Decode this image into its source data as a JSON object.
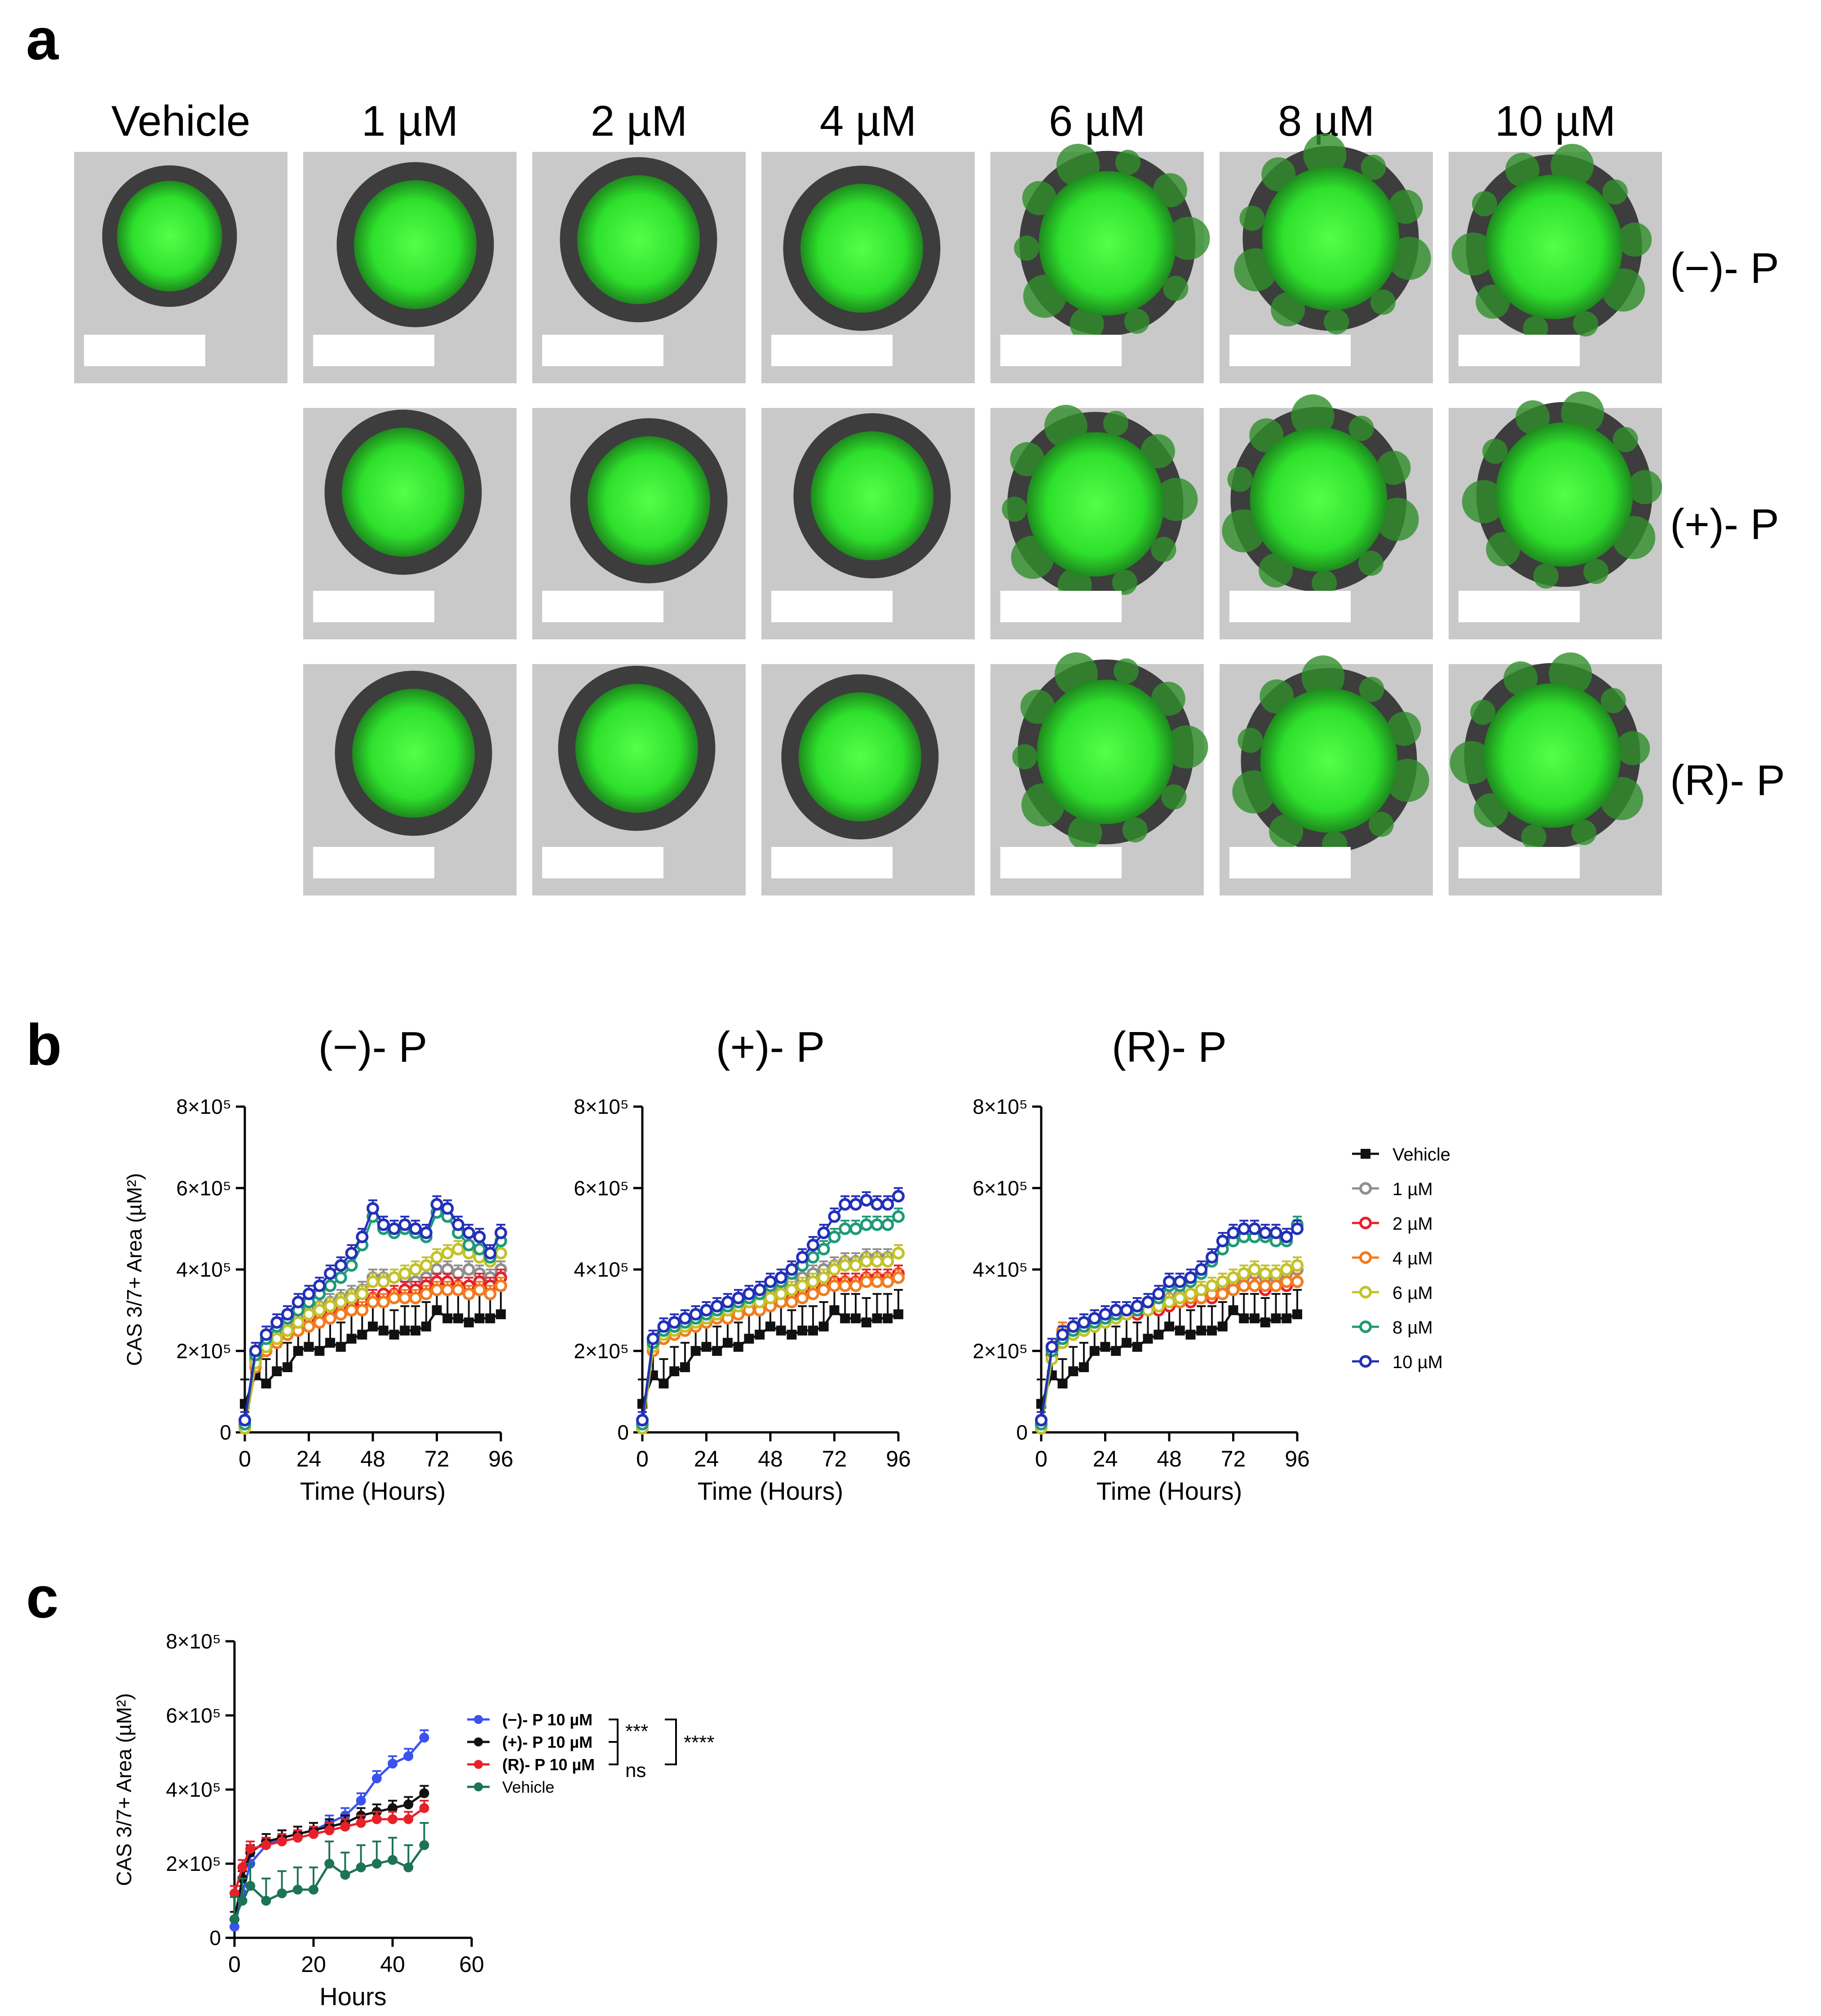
{
  "panels": {
    "a": "a",
    "b": "b",
    "c": "c"
  },
  "panel_a": {
    "concentrations": [
      "Vehicle",
      "1 µM",
      "2 µM",
      "4 µM",
      "6 µM",
      "8 µM",
      "10 µM"
    ],
    "rows": [
      "(−)- P",
      "(+)- P",
      "(R)- P"
    ]
  },
  "colors": {
    "vehicle": "#111111",
    "c1": "#8f8f8f",
    "c2": "#e8202a",
    "c4": "#f27b1f",
    "c6": "#c3c22a",
    "c8": "#1f9a78",
    "c10": "#2430b8",
    "c_neg": "#3b52ee",
    "c_pos": "#111111",
    "c_r": "#e8202a",
    "c_veh": "#1d7355",
    "spheroid": "#3cf23a",
    "background": "#c9c9c9"
  },
  "chart_data": [
    {
      "type": "line",
      "title": "(−)- P",
      "xlabel": "Time (Hours)",
      "ylabel": "CAS 3/7+ Area (µM²)",
      "xlim": [
        0,
        96
      ],
      "ylim": [
        0,
        800000
      ],
      "xticks": [
        "0",
        "24",
        "48",
        "72",
        "96"
      ],
      "yticks": [
        "0",
        "2×10⁵",
        "4×10⁵",
        "6×10⁵",
        "8×10⁵"
      ],
      "x": [
        0,
        4,
        8,
        12,
        16,
        20,
        24,
        28,
        32,
        36,
        40,
        44,
        48,
        52,
        56,
        60,
        64,
        68,
        72,
        76,
        80,
        84,
        88,
        92,
        96
      ],
      "series": [
        {
          "name": "Vehicle",
          "key": "vehicle",
          "values": [
            70000,
            140000,
            120000,
            150000,
            160000,
            200000,
            210000,
            200000,
            220000,
            210000,
            230000,
            240000,
            260000,
            250000,
            240000,
            250000,
            250000,
            260000,
            300000,
            280000,
            280000,
            270000,
            280000,
            280000,
            290000
          ]
        },
        {
          "name": "1 µM",
          "key": "c1",
          "values": [
            20000,
            180000,
            220000,
            240000,
            260000,
            280000,
            300000,
            310000,
            320000,
            330000,
            340000,
            350000,
            380000,
            380000,
            380000,
            380000,
            370000,
            380000,
            400000,
            400000,
            390000,
            400000,
            390000,
            380000,
            400000
          ]
        },
        {
          "name": "2 µM",
          "key": "c2",
          "values": [
            20000,
            170000,
            210000,
            230000,
            250000,
            260000,
            280000,
            290000,
            300000,
            300000,
            310000,
            320000,
            330000,
            340000,
            340000,
            350000,
            350000,
            360000,
            370000,
            370000,
            360000,
            360000,
            370000,
            360000,
            380000
          ]
        },
        {
          "name": "4 µM",
          "key": "c4",
          "values": [
            10000,
            160000,
            200000,
            220000,
            240000,
            250000,
            260000,
            270000,
            280000,
            290000,
            300000,
            300000,
            320000,
            320000,
            330000,
            330000,
            330000,
            340000,
            350000,
            350000,
            350000,
            340000,
            350000,
            340000,
            360000
          ]
        },
        {
          "name": "6 µM",
          "key": "c6",
          "values": [
            10000,
            170000,
            210000,
            230000,
            250000,
            270000,
            290000,
            300000,
            310000,
            320000,
            330000,
            340000,
            370000,
            370000,
            380000,
            390000,
            400000,
            410000,
            430000,
            440000,
            450000,
            440000,
            430000,
            420000,
            440000
          ]
        },
        {
          "name": "8 µM",
          "key": "c8",
          "values": [
            20000,
            190000,
            230000,
            260000,
            280000,
            300000,
            320000,
            340000,
            360000,
            380000,
            410000,
            460000,
            530000,
            500000,
            490000,
            500000,
            490000,
            480000,
            540000,
            530000,
            490000,
            460000,
            450000,
            430000,
            470000
          ]
        },
        {
          "name": "10 µM",
          "key": "c10",
          "values": [
            30000,
            200000,
            240000,
            270000,
            290000,
            320000,
            340000,
            360000,
            390000,
            410000,
            440000,
            480000,
            550000,
            510000,
            500000,
            510000,
            500000,
            490000,
            560000,
            550000,
            510000,
            490000,
            480000,
            440000,
            490000
          ]
        }
      ]
    },
    {
      "type": "line",
      "title": "(+)- P",
      "xlabel": "Time (Hours)",
      "ylabel": "",
      "xlim": [
        0,
        96
      ],
      "ylim": [
        0,
        800000
      ],
      "xticks": [
        "0",
        "24",
        "48",
        "72",
        "96"
      ],
      "yticks": [
        "0",
        "2×10⁵",
        "4×10⁵",
        "6×10⁵",
        "8×10⁵"
      ],
      "x": [
        0,
        4,
        8,
        12,
        16,
        20,
        24,
        28,
        32,
        36,
        40,
        44,
        48,
        52,
        56,
        60,
        64,
        68,
        72,
        76,
        80,
        84,
        88,
        92,
        96
      ],
      "series": [
        {
          "name": "Vehicle",
          "key": "vehicle",
          "values": [
            70000,
            140000,
            120000,
            150000,
            160000,
            200000,
            210000,
            200000,
            220000,
            210000,
            230000,
            240000,
            260000,
            250000,
            240000,
            250000,
            250000,
            260000,
            300000,
            280000,
            280000,
            270000,
            280000,
            280000,
            290000
          ]
        },
        {
          "name": "1 µM",
          "key": "c1",
          "values": [
            20000,
            220000,
            250000,
            260000,
            270000,
            280000,
            290000,
            300000,
            310000,
            320000,
            330000,
            340000,
            350000,
            360000,
            370000,
            380000,
            390000,
            400000,
            410000,
            420000,
            420000,
            430000,
            430000,
            430000,
            440000
          ]
        },
        {
          "name": "2 µM",
          "key": "c2",
          "values": [
            20000,
            210000,
            240000,
            250000,
            260000,
            270000,
            280000,
            290000,
            290000,
            300000,
            310000,
            310000,
            320000,
            330000,
            330000,
            340000,
            350000,
            360000,
            370000,
            370000,
            370000,
            380000,
            380000,
            380000,
            390000
          ]
        },
        {
          "name": "4 µM",
          "key": "c4",
          "values": [
            10000,
            200000,
            230000,
            240000,
            250000,
            260000,
            270000,
            280000,
            280000,
            290000,
            300000,
            300000,
            310000,
            320000,
            320000,
            330000,
            340000,
            350000,
            360000,
            360000,
            360000,
            370000,
            370000,
            370000,
            380000
          ]
        },
        {
          "name": "6 µM",
          "key": "c6",
          "values": [
            10000,
            210000,
            240000,
            250000,
            260000,
            270000,
            280000,
            290000,
            300000,
            310000,
            320000,
            320000,
            330000,
            340000,
            350000,
            360000,
            370000,
            380000,
            400000,
            410000,
            410000,
            420000,
            420000,
            420000,
            440000
          ]
        },
        {
          "name": "8 µM",
          "key": "c8",
          "values": [
            20000,
            220000,
            250000,
            260000,
            270000,
            280000,
            290000,
            300000,
            310000,
            320000,
            330000,
            340000,
            360000,
            370000,
            390000,
            410000,
            430000,
            450000,
            480000,
            500000,
            500000,
            510000,
            510000,
            510000,
            530000
          ]
        },
        {
          "name": "10 µM",
          "key": "c10",
          "values": [
            30000,
            230000,
            260000,
            270000,
            280000,
            290000,
            300000,
            310000,
            320000,
            330000,
            340000,
            350000,
            370000,
            380000,
            400000,
            430000,
            460000,
            490000,
            530000,
            560000,
            560000,
            570000,
            560000,
            560000,
            580000
          ]
        }
      ]
    },
    {
      "type": "line",
      "title": "(R)- P",
      "xlabel": "Time (Hours)",
      "ylabel": "",
      "xlim": [
        0,
        96
      ],
      "ylim": [
        0,
        800000
      ],
      "xticks": [
        "0",
        "24",
        "48",
        "72",
        "96"
      ],
      "yticks": [
        "0",
        "2×10⁵",
        "4×10⁵",
        "6×10⁵",
        "8×10⁵"
      ],
      "x": [
        0,
        4,
        8,
        12,
        16,
        20,
        24,
        28,
        32,
        36,
        40,
        44,
        48,
        52,
        56,
        60,
        64,
        68,
        72,
        76,
        80,
        84,
        88,
        92,
        96
      ],
      "series": [
        {
          "name": "Vehicle",
          "key": "vehicle",
          "values": [
            70000,
            140000,
            120000,
            150000,
            160000,
            200000,
            210000,
            200000,
            220000,
            210000,
            230000,
            240000,
            260000,
            250000,
            240000,
            250000,
            250000,
            260000,
            300000,
            280000,
            280000,
            270000,
            280000,
            280000,
            290000
          ]
        },
        {
          "name": "1 µM",
          "key": "c1",
          "values": [
            20000,
            200000,
            230000,
            250000,
            260000,
            270000,
            280000,
            290000,
            300000,
            300000,
            310000,
            320000,
            330000,
            340000,
            340000,
            350000,
            350000,
            360000,
            370000,
            380000,
            390000,
            380000,
            380000,
            390000,
            400000
          ]
        },
        {
          "name": "2 µM",
          "key": "c2",
          "values": [
            20000,
            190000,
            220000,
            240000,
            250000,
            260000,
            270000,
            280000,
            290000,
            290000,
            300000,
            300000,
            310000,
            320000,
            320000,
            330000,
            330000,
            340000,
            350000,
            360000,
            360000,
            350000,
            360000,
            360000,
            370000
          ]
        },
        {
          "name": "4 µM",
          "key": "c4",
          "values": [
            10000,
            210000,
            250000,
            260000,
            270000,
            280000,
            290000,
            290000,
            300000,
            300000,
            310000,
            310000,
            320000,
            320000,
            330000,
            330000,
            340000,
            340000,
            350000,
            360000,
            360000,
            360000,
            360000,
            370000,
            370000
          ]
        },
        {
          "name": "6 µM",
          "key": "c6",
          "values": [
            10000,
            180000,
            220000,
            240000,
            250000,
            260000,
            270000,
            280000,
            290000,
            300000,
            300000,
            310000,
            320000,
            330000,
            340000,
            350000,
            360000,
            370000,
            380000,
            390000,
            400000,
            390000,
            390000,
            400000,
            410000
          ]
        },
        {
          "name": "8 µM",
          "key": "c8",
          "values": [
            20000,
            200000,
            230000,
            250000,
            260000,
            270000,
            280000,
            290000,
            300000,
            300000,
            320000,
            330000,
            360000,
            360000,
            370000,
            390000,
            420000,
            450000,
            470000,
            480000,
            480000,
            480000,
            470000,
            470000,
            510000
          ]
        },
        {
          "name": "10 µM",
          "key": "c10",
          "values": [
            30000,
            210000,
            240000,
            260000,
            270000,
            280000,
            290000,
            300000,
            300000,
            310000,
            320000,
            340000,
            370000,
            370000,
            380000,
            400000,
            430000,
            470000,
            490000,
            500000,
            500000,
            490000,
            490000,
            480000,
            500000
          ]
        }
      ]
    },
    {
      "type": "line",
      "title": "",
      "xlabel": "Hours",
      "ylabel": "CAS 3/7+ Area (µM²)",
      "xlim": [
        0,
        60
      ],
      "ylim": [
        0,
        800000
      ],
      "xticks": [
        "0",
        "20",
        "40",
        "60"
      ],
      "yticks": [
        "0",
        "2×10⁵",
        "4×10⁵",
        "6×10⁵",
        "8×10⁵"
      ],
      "x": [
        0,
        2,
        4,
        8,
        12,
        16,
        20,
        24,
        28,
        32,
        36,
        40,
        44,
        48
      ],
      "series": [
        {
          "name": "(−)- P 10 µM",
          "key": "c_neg",
          "values": [
            30000,
            120000,
            200000,
            250000,
            270000,
            280000,
            290000,
            310000,
            330000,
            370000,
            430000,
            470000,
            490000,
            540000
          ]
        },
        {
          "name": "(+)- P 10 µM",
          "key": "c_pos",
          "values": [
            50000,
            160000,
            230000,
            260000,
            270000,
            280000,
            290000,
            300000,
            310000,
            330000,
            340000,
            350000,
            360000,
            390000
          ]
        },
        {
          "name": "(R)- P 10 µM",
          "key": "c_r",
          "values": [
            120000,
            190000,
            240000,
            250000,
            260000,
            270000,
            280000,
            290000,
            300000,
            310000,
            320000,
            320000,
            320000,
            350000
          ]
        },
        {
          "name": "Vehicle",
          "key": "c_veh",
          "values": [
            50000,
            100000,
            140000,
            100000,
            120000,
            130000,
            130000,
            200000,
            170000,
            190000,
            200000,
            210000,
            190000,
            250000
          ]
        }
      ],
      "annotations": [
        "***",
        "ns",
        "****"
      ]
    }
  ],
  "legend_b": [
    "Vehicle",
    "1 µM",
    "2 µM",
    "4 µM",
    "6 µM",
    "8 µM",
    "10 µM"
  ]
}
